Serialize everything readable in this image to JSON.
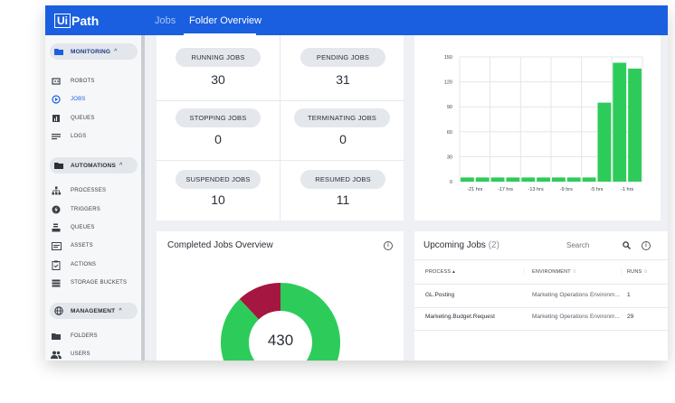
{
  "app": {
    "logo_box": "Ui",
    "logo_text": "Path"
  },
  "header": {
    "crumb_jobs": "Jobs",
    "crumb_folder": "Folder Overview"
  },
  "sidebar": {
    "monitoring": {
      "label": "MONITORING",
      "chevron": "^"
    },
    "monitoring_items": [
      {
        "label": "ROBOTS",
        "icon": "robot-icon"
      },
      {
        "label": "JOBS",
        "icon": "play-circle-icon"
      },
      {
        "label": "QUEUES",
        "icon": "queue-chart-icon"
      },
      {
        "label": "LOGS",
        "icon": "logs-icon"
      }
    ],
    "automations": {
      "label": "AUTOMATIONS",
      "chevron": "^"
    },
    "automations_items": [
      {
        "label": "PROCESSES",
        "icon": "process-tree-icon"
      },
      {
        "label": "TRIGGERS",
        "icon": "trigger-bolt-icon"
      },
      {
        "label": "QUEUES",
        "icon": "queue-stack-icon"
      },
      {
        "label": "ASSETS",
        "icon": "asset-icon"
      },
      {
        "label": "ACTIONS",
        "icon": "action-clipboard-icon"
      },
      {
        "label": "STORAGE BUCKETS",
        "icon": "storage-icon"
      }
    ],
    "management": {
      "label": "MANAGEMENT",
      "chevron": "^"
    },
    "management_items": [
      {
        "label": "FOLDERS",
        "icon": "folder-icon"
      },
      {
        "label": "USERS",
        "icon": "users-icon"
      }
    ]
  },
  "job_stats": [
    {
      "label": "RUNNING JOBS",
      "value": "30"
    },
    {
      "label": "PENDING JOBS",
      "value": "31"
    },
    {
      "label": "STOPPING JOBS",
      "value": "0"
    },
    {
      "label": "TERMINATING JOBS",
      "value": "0"
    },
    {
      "label": "SUSPENDED JOBS",
      "value": "10"
    },
    {
      "label": "RESUMED JOBS",
      "value": "11"
    }
  ],
  "chart_data": {
    "type": "bar",
    "color": "#2dcc5a",
    "yticks": [
      "150",
      "120",
      "90",
      "60",
      "30",
      "0"
    ],
    "ylim": [
      0,
      150
    ],
    "xtick_labels": [
      "-21 hrs",
      "-17 hrs",
      "-13 hrs",
      "-9 hrs",
      "-5 hrs",
      "-1 hrs"
    ],
    "values": [
      5,
      5,
      5,
      5,
      5,
      5,
      5,
      5,
      5,
      95,
      143,
      136
    ],
    "grid": true
  },
  "completed": {
    "title": "Completed Jobs Overview",
    "center_value": "430",
    "donut_colors": [
      "#2dcc5a",
      "#a51641"
    ]
  },
  "upcoming": {
    "title": "Upcoming Jobs",
    "count": "(2)",
    "search_placeholder": "Search",
    "columns": [
      "PROCESS ▴",
      "ENVIRONMENT ♢",
      "RUNS ♢"
    ],
    "rows": [
      {
        "process": "GL.Posting",
        "environment": "Marketing Operations Environm...",
        "runs": "1"
      },
      {
        "process": "Marketing.Budget.Request",
        "environment": "Marketing Operations Environm...",
        "runs": "29"
      }
    ]
  }
}
